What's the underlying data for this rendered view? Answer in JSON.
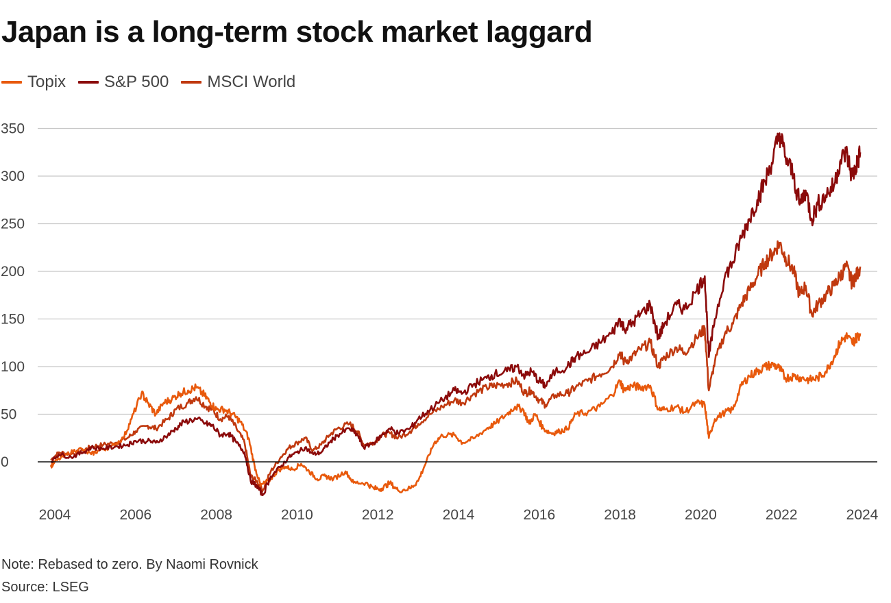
{
  "title": "Japan is a long-term stock market laggard",
  "note": "Note: Rebased to zero. By Naomi Rovnick",
  "source": "Source: LSEG",
  "colors": {
    "topix": "#e8590c",
    "sp500": "#8b0a0a",
    "msci": "#c0390f",
    "grid": "#c8c8c8",
    "zero": "#111111"
  },
  "chart_data": {
    "type": "line",
    "title": "Japan is a long-term stock market laggard",
    "xlabel": "",
    "ylabel": "",
    "xlim": [
      2003.9,
      2024.0
    ],
    "ylim": [
      -50,
      360
    ],
    "x_ticks": [
      "2004",
      "2006",
      "2008",
      "2010",
      "2012",
      "2014",
      "2016",
      "2018",
      "2020",
      "2022",
      "2024"
    ],
    "y_ticks": [
      0,
      50,
      100,
      150,
      200,
      250,
      300,
      350
    ],
    "series": [
      {
        "name": "Topix",
        "color": "#e8590c",
        "points": [
          [
            2003.9,
            -5
          ],
          [
            2004.0,
            0
          ],
          [
            2004.3,
            8
          ],
          [
            2004.6,
            14
          ],
          [
            2004.9,
            8
          ],
          [
            2005.1,
            12
          ],
          [
            2005.4,
            16
          ],
          [
            2005.7,
            25
          ],
          [
            2005.9,
            45
          ],
          [
            2006.15,
            72
          ],
          [
            2006.3,
            62
          ],
          [
            2006.5,
            50
          ],
          [
            2006.7,
            62
          ],
          [
            2006.9,
            66
          ],
          [
            2007.1,
            72
          ],
          [
            2007.3,
            75
          ],
          [
            2007.5,
            78
          ],
          [
            2007.7,
            70
          ],
          [
            2007.85,
            62
          ],
          [
            2008.0,
            55
          ],
          [
            2008.2,
            55
          ],
          [
            2008.4,
            50
          ],
          [
            2008.6,
            42
          ],
          [
            2008.8,
            25
          ],
          [
            2008.95,
            -5
          ],
          [
            2009.1,
            -25
          ],
          [
            2009.3,
            -20
          ],
          [
            2009.5,
            -10
          ],
          [
            2009.7,
            -5
          ],
          [
            2009.9,
            -8
          ],
          [
            2010.1,
            -2
          ],
          [
            2010.3,
            -10
          ],
          [
            2010.5,
            -18
          ],
          [
            2010.7,
            -15
          ],
          [
            2010.9,
            -18
          ],
          [
            2011.2,
            -10
          ],
          [
            2011.4,
            -22
          ],
          [
            2011.7,
            -22
          ],
          [
            2011.9,
            -28
          ],
          [
            2012.1,
            -28
          ],
          [
            2012.3,
            -22
          ],
          [
            2012.5,
            -30
          ],
          [
            2012.8,
            -28
          ],
          [
            2013.0,
            -20
          ],
          [
            2013.2,
            0
          ],
          [
            2013.4,
            20
          ],
          [
            2013.6,
            28
          ],
          [
            2013.9,
            28
          ],
          [
            2014.1,
            20
          ],
          [
            2014.4,
            25
          ],
          [
            2014.7,
            35
          ],
          [
            2014.9,
            40
          ],
          [
            2015.2,
            50
          ],
          [
            2015.4,
            58
          ],
          [
            2015.6,
            55
          ],
          [
            2015.75,
            40
          ],
          [
            2015.9,
            50
          ],
          [
            2016.1,
            35
          ],
          [
            2016.3,
            30
          ],
          [
            2016.5,
            32
          ],
          [
            2016.7,
            35
          ],
          [
            2016.9,
            50
          ],
          [
            2017.2,
            52
          ],
          [
            2017.5,
            58
          ],
          [
            2017.8,
            70
          ],
          [
            2018.0,
            85
          ],
          [
            2018.1,
            75
          ],
          [
            2018.3,
            80
          ],
          [
            2018.5,
            78
          ],
          [
            2018.75,
            80
          ],
          [
            2018.95,
            55
          ],
          [
            2019.1,
            55
          ],
          [
            2019.4,
            58
          ],
          [
            2019.6,
            52
          ],
          [
            2019.9,
            62
          ],
          [
            2020.1,
            60
          ],
          [
            2020.2,
            25
          ],
          [
            2020.35,
            45
          ],
          [
            2020.6,
            52
          ],
          [
            2020.8,
            55
          ],
          [
            2021.0,
            80
          ],
          [
            2021.2,
            90
          ],
          [
            2021.4,
            95
          ],
          [
            2021.6,
            100
          ],
          [
            2021.8,
            102
          ],
          [
            2021.95,
            98
          ],
          [
            2022.1,
            88
          ],
          [
            2022.3,
            90
          ],
          [
            2022.5,
            88
          ],
          [
            2022.7,
            86
          ],
          [
            2022.9,
            88
          ],
          [
            2023.1,
            95
          ],
          [
            2023.3,
            110
          ],
          [
            2023.45,
            125
          ],
          [
            2023.6,
            132
          ],
          [
            2023.75,
            125
          ],
          [
            2023.85,
            130
          ],
          [
            2023.95,
            135
          ]
        ]
      },
      {
        "name": "S&P 500",
        "color": "#8b0a0a",
        "points": [
          [
            2003.9,
            0
          ],
          [
            2004.1,
            8
          ],
          [
            2004.4,
            5
          ],
          [
            2004.7,
            10
          ],
          [
            2004.9,
            15
          ],
          [
            2005.2,
            14
          ],
          [
            2005.5,
            16
          ],
          [
            2005.8,
            18
          ],
          [
            2006.0,
            22
          ],
          [
            2006.3,
            22
          ],
          [
            2006.5,
            20
          ],
          [
            2006.8,
            28
          ],
          [
            2007.0,
            35
          ],
          [
            2007.2,
            42
          ],
          [
            2007.5,
            45
          ],
          [
            2007.75,
            40
          ],
          [
            2007.9,
            38
          ],
          [
            2008.1,
            28
          ],
          [
            2008.3,
            30
          ],
          [
            2008.5,
            20
          ],
          [
            2008.7,
            10
          ],
          [
            2008.85,
            -20
          ],
          [
            2009.0,
            -25
          ],
          [
            2009.15,
            -35
          ],
          [
            2009.35,
            -15
          ],
          [
            2009.6,
            -5
          ],
          [
            2009.8,
            5
          ],
          [
            2010.0,
            10
          ],
          [
            2010.2,
            15
          ],
          [
            2010.4,
            8
          ],
          [
            2010.6,
            10
          ],
          [
            2010.8,
            20
          ],
          [
            2011.0,
            28
          ],
          [
            2011.3,
            35
          ],
          [
            2011.5,
            28
          ],
          [
            2011.65,
            15
          ],
          [
            2011.9,
            20
          ],
          [
            2012.1,
            28
          ],
          [
            2012.3,
            35
          ],
          [
            2012.5,
            30
          ],
          [
            2012.8,
            35
          ],
          [
            2013.0,
            45
          ],
          [
            2013.3,
            55
          ],
          [
            2013.6,
            65
          ],
          [
            2013.9,
            75
          ],
          [
            2014.1,
            72
          ],
          [
            2014.4,
            82
          ],
          [
            2014.7,
            88
          ],
          [
            2014.9,
            92
          ],
          [
            2015.2,
            95
          ],
          [
            2015.45,
            100
          ],
          [
            2015.65,
            90
          ],
          [
            2015.8,
            95
          ],
          [
            2016.0,
            85
          ],
          [
            2016.15,
            80
          ],
          [
            2016.4,
            95
          ],
          [
            2016.7,
            100
          ],
          [
            2016.9,
            110
          ],
          [
            2017.2,
            115
          ],
          [
            2017.5,
            125
          ],
          [
            2017.8,
            135
          ],
          [
            2018.0,
            150
          ],
          [
            2018.1,
            140
          ],
          [
            2018.3,
            145
          ],
          [
            2018.5,
            155
          ],
          [
            2018.75,
            165
          ],
          [
            2018.95,
            130
          ],
          [
            2019.1,
            145
          ],
          [
            2019.4,
            165
          ],
          [
            2019.6,
            160
          ],
          [
            2019.9,
            180
          ],
          [
            2020.1,
            195
          ],
          [
            2020.2,
            110
          ],
          [
            2020.35,
            150
          ],
          [
            2020.6,
            195
          ],
          [
            2020.8,
            210
          ],
          [
            2021.0,
            235
          ],
          [
            2021.2,
            255
          ],
          [
            2021.4,
            275
          ],
          [
            2021.6,
            295
          ],
          [
            2021.8,
            320
          ],
          [
            2021.95,
            345
          ],
          [
            2022.1,
            320
          ],
          [
            2022.3,
            300
          ],
          [
            2022.45,
            270
          ],
          [
            2022.6,
            285
          ],
          [
            2022.75,
            255
          ],
          [
            2022.9,
            270
          ],
          [
            2023.1,
            280
          ],
          [
            2023.3,
            290
          ],
          [
            2023.45,
            315
          ],
          [
            2023.6,
            325
          ],
          [
            2023.75,
            300
          ],
          [
            2023.85,
            310
          ],
          [
            2023.95,
            325
          ]
        ]
      },
      {
        "name": "MSCI World",
        "color": "#c0390f",
        "points": [
          [
            2003.9,
            2
          ],
          [
            2004.1,
            10
          ],
          [
            2004.4,
            8
          ],
          [
            2004.7,
            12
          ],
          [
            2004.9,
            16
          ],
          [
            2005.2,
            18
          ],
          [
            2005.5,
            20
          ],
          [
            2005.8,
            25
          ],
          [
            2006.0,
            32
          ],
          [
            2006.3,
            38
          ],
          [
            2006.5,
            35
          ],
          [
            2006.8,
            45
          ],
          [
            2007.0,
            55
          ],
          [
            2007.3,
            62
          ],
          [
            2007.5,
            68
          ],
          [
            2007.75,
            58
          ],
          [
            2007.9,
            55
          ],
          [
            2008.1,
            45
          ],
          [
            2008.3,
            48
          ],
          [
            2008.5,
            35
          ],
          [
            2008.7,
            20
          ],
          [
            2008.85,
            -15
          ],
          [
            2009.0,
            -20
          ],
          [
            2009.15,
            -30
          ],
          [
            2009.35,
            -10
          ],
          [
            2009.6,
            5
          ],
          [
            2009.8,
            15
          ],
          [
            2010.0,
            20
          ],
          [
            2010.2,
            25
          ],
          [
            2010.4,
            12
          ],
          [
            2010.6,
            18
          ],
          [
            2010.8,
            28
          ],
          [
            2011.0,
            35
          ],
          [
            2011.3,
            40
          ],
          [
            2011.5,
            32
          ],
          [
            2011.65,
            18
          ],
          [
            2011.9,
            20
          ],
          [
            2012.1,
            28
          ],
          [
            2012.3,
            30
          ],
          [
            2012.5,
            25
          ],
          [
            2012.8,
            32
          ],
          [
            2013.0,
            40
          ],
          [
            2013.3,
            50
          ],
          [
            2013.6,
            58
          ],
          [
            2013.9,
            65
          ],
          [
            2014.1,
            62
          ],
          [
            2014.4,
            72
          ],
          [
            2014.7,
            78
          ],
          [
            2014.9,
            80
          ],
          [
            2015.2,
            82
          ],
          [
            2015.45,
            85
          ],
          [
            2015.65,
            72
          ],
          [
            2015.8,
            75
          ],
          [
            2016.0,
            65
          ],
          [
            2016.15,
            60
          ],
          [
            2016.4,
            70
          ],
          [
            2016.7,
            72
          ],
          [
            2016.9,
            78
          ],
          [
            2017.2,
            85
          ],
          [
            2017.5,
            92
          ],
          [
            2017.8,
            100
          ],
          [
            2018.0,
            115
          ],
          [
            2018.1,
            105
          ],
          [
            2018.3,
            110
          ],
          [
            2018.5,
            118
          ],
          [
            2018.75,
            125
          ],
          [
            2018.95,
            100
          ],
          [
            2019.1,
            110
          ],
          [
            2019.4,
            120
          ],
          [
            2019.6,
            115
          ],
          [
            2019.9,
            130
          ],
          [
            2020.1,
            140
          ],
          [
            2020.2,
            75
          ],
          [
            2020.35,
            105
          ],
          [
            2020.6,
            135
          ],
          [
            2020.8,
            145
          ],
          [
            2021.0,
            165
          ],
          [
            2021.2,
            180
          ],
          [
            2021.4,
            195
          ],
          [
            2021.6,
            210
          ],
          [
            2021.8,
            220
          ],
          [
            2021.95,
            230
          ],
          [
            2022.1,
            215
          ],
          [
            2022.3,
            200
          ],
          [
            2022.45,
            175
          ],
          [
            2022.6,
            185
          ],
          [
            2022.75,
            155
          ],
          [
            2022.9,
            165
          ],
          [
            2023.1,
            175
          ],
          [
            2023.3,
            185
          ],
          [
            2023.45,
            195
          ],
          [
            2023.6,
            205
          ],
          [
            2023.75,
            188
          ],
          [
            2023.85,
            195
          ],
          [
            2023.95,
            205
          ]
        ]
      }
    ]
  }
}
